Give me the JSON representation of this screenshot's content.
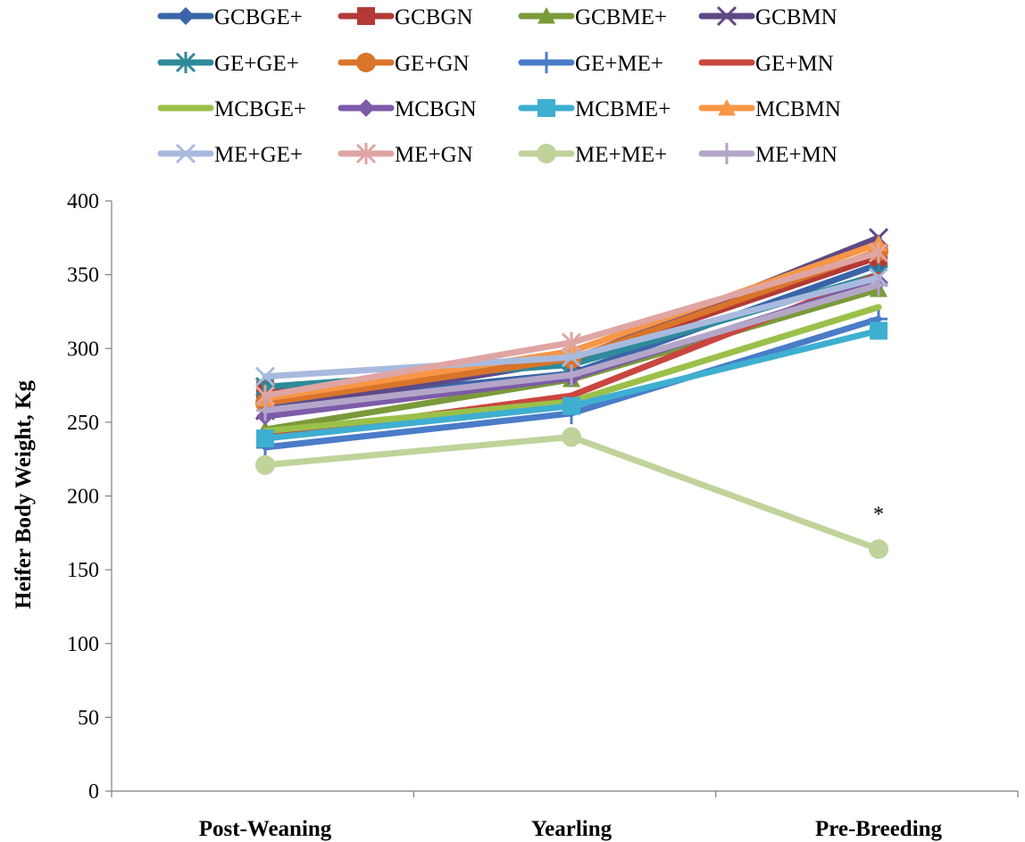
{
  "chart_data": {
    "type": "line",
    "title": "",
    "xlabel": "",
    "ylabel": "Heifer Body Weight, Kg",
    "categories": [
      "Post-Weaning",
      "Yearling",
      "Pre-Breeding"
    ],
    "ylim": [
      0,
      400
    ],
    "yticks": [
      0,
      50,
      100,
      150,
      200,
      250,
      300,
      350,
      400
    ],
    "grid": false,
    "legend_position": "top",
    "series": [
      {
        "name": "GCBGE+",
        "color": "#3B64A8",
        "marker": "diamond",
        "values": [
          262,
          283,
          357
        ]
      },
      {
        "name": "GCBGN",
        "color": "#B33A36",
        "marker": "square",
        "values": [
          272,
          292,
          362
        ]
      },
      {
        "name": "GCBME+",
        "color": "#7A9A3A",
        "marker": "triangle",
        "values": [
          245,
          279,
          340
        ]
      },
      {
        "name": "GCBMN",
        "color": "#5E4987",
        "marker": "x",
        "values": [
          258,
          292,
          375
        ]
      },
      {
        "name": "GE+GE+",
        "color": "#2E8A9A",
        "marker": "star",
        "values": [
          274,
          289,
          350
        ]
      },
      {
        "name": "GE+GN",
        "color": "#D9742A",
        "marker": "circle",
        "values": [
          263,
          293,
          366
        ]
      },
      {
        "name": "GE+ME+",
        "color": "#4A7CC8",
        "marker": "plus",
        "values": [
          233,
          256,
          320
        ]
      },
      {
        "name": "GE+MN",
        "color": "#C9463F",
        "marker": "none",
        "values": [
          240,
          268,
          350
        ]
      },
      {
        "name": "MCBGE+",
        "color": "#9BC04A",
        "marker": "none",
        "values": [
          244,
          264,
          328
        ]
      },
      {
        "name": "MCBGN",
        "color": "#7D5BA8",
        "marker": "diamond",
        "values": [
          254,
          280,
          345
        ]
      },
      {
        "name": "MCBME+",
        "color": "#3EAFD1",
        "marker": "square",
        "values": [
          239,
          261,
          312
        ]
      },
      {
        "name": "MCBMN",
        "color": "#F79646",
        "marker": "triangle",
        "values": [
          266,
          298,
          371
        ]
      },
      {
        "name": "ME+GE+",
        "color": "#A9BADF",
        "marker": "x",
        "values": [
          281,
          294,
          348
        ]
      },
      {
        "name": "ME+GN",
        "color": "#DFA5A3",
        "marker": "star",
        "values": [
          268,
          304,
          365
        ]
      },
      {
        "name": "ME+ME+",
        "color": "#BFD39A",
        "marker": "circle",
        "values": [
          221,
          240,
          164
        ]
      },
      {
        "name": "ME+MN",
        "color": "#B4A6C8",
        "marker": "plus",
        "values": [
          258,
          282,
          343
        ]
      }
    ],
    "annotations": [
      {
        "text": "*",
        "category": "Pre-Breeding",
        "y": 188
      }
    ]
  }
}
